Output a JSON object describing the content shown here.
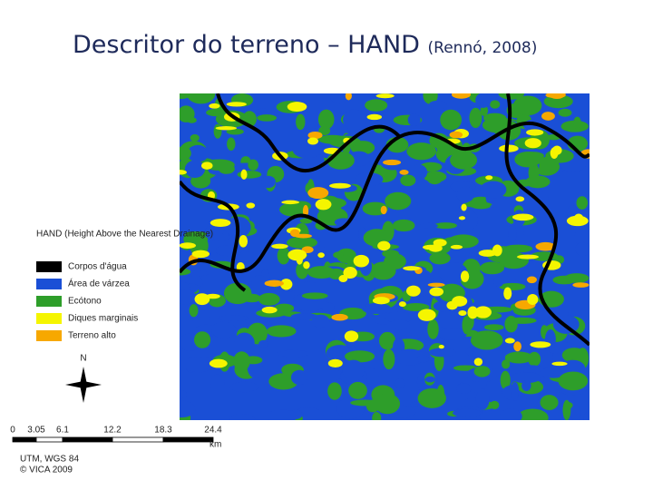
{
  "header": {
    "title": "Descritor do terreno – HAND",
    "citation": "(Rennó, 2008)"
  },
  "legend": {
    "title": "HAND (Height Above the Nearest Drainage)",
    "items": [
      {
        "label": "Corpos d'água",
        "color": "#000000"
      },
      {
        "label": "Área de várzea",
        "color": "#1a4fd6"
      },
      {
        "label": "Ecótono",
        "color": "#2e9e2a"
      },
      {
        "label": "Diques marginais",
        "color": "#f5f500"
      },
      {
        "label": "Terreno alto",
        "color": "#f7a800"
      }
    ]
  },
  "north_arrow": {
    "label": "N"
  },
  "scale_bar": {
    "ticks": [
      "0",
      "3.05",
      "6.1",
      "12.2",
      "18.3",
      "24.4"
    ],
    "unit": "km"
  },
  "credits": [
    "UTM, WGS 84",
    "© VICA 2009"
  ]
}
